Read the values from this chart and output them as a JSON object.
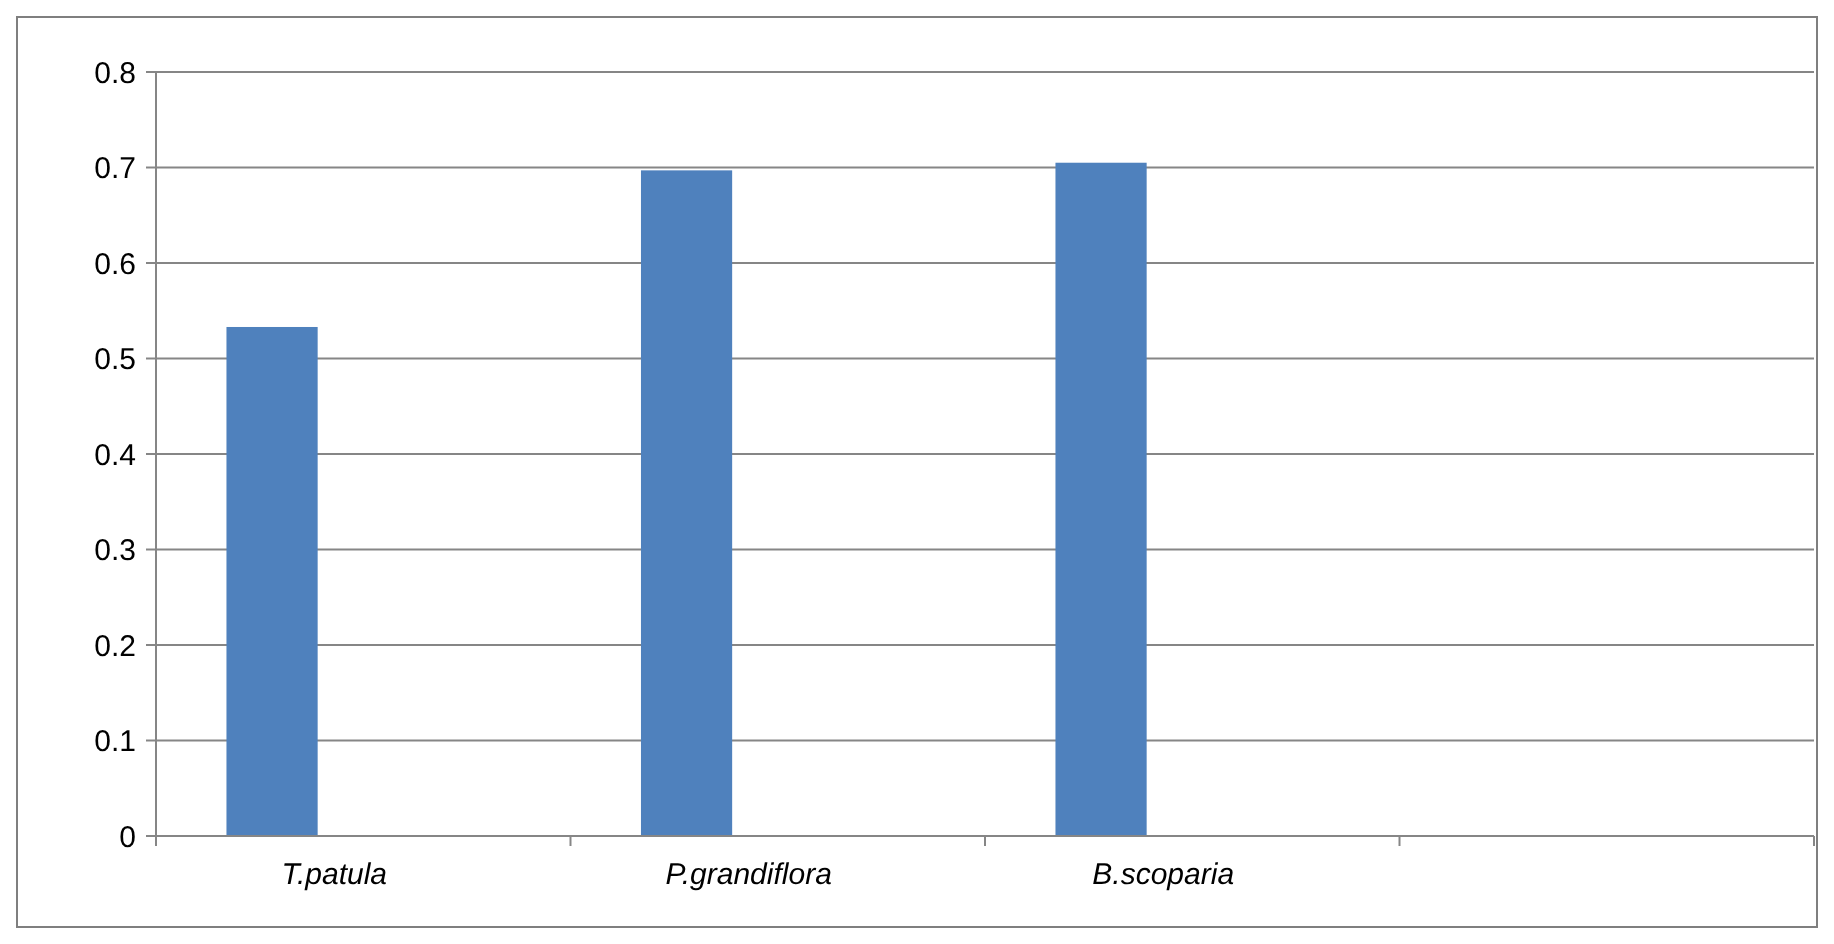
{
  "chart_data": {
    "type": "bar",
    "categories": [
      "T.patula",
      "P.grandiflora",
      "B.scoparia",
      null
    ],
    "values": [
      0.533,
      0.697,
      0.705,
      null
    ],
    "color": "#4f81bd",
    "ylim": [
      0,
      0.8
    ],
    "yticks": [
      0,
      {
        "value": 0.1,
        "label": "0.1"
      },
      {
        "value": 0.2,
        "label": "0.2"
      },
      {
        "value": 0.3,
        "label": "0.3"
      },
      {
        "value": 0.4,
        "label": "0.4"
      },
      {
        "value": 0.5,
        "label": "0.5"
      },
      {
        "value": 0.6,
        "label": "0.6"
      },
      {
        "value": 0.7,
        "label": "0.7"
      },
      {
        "value": 0.8,
        "label": "0.8"
      }
    ],
    "grid": "y"
  }
}
